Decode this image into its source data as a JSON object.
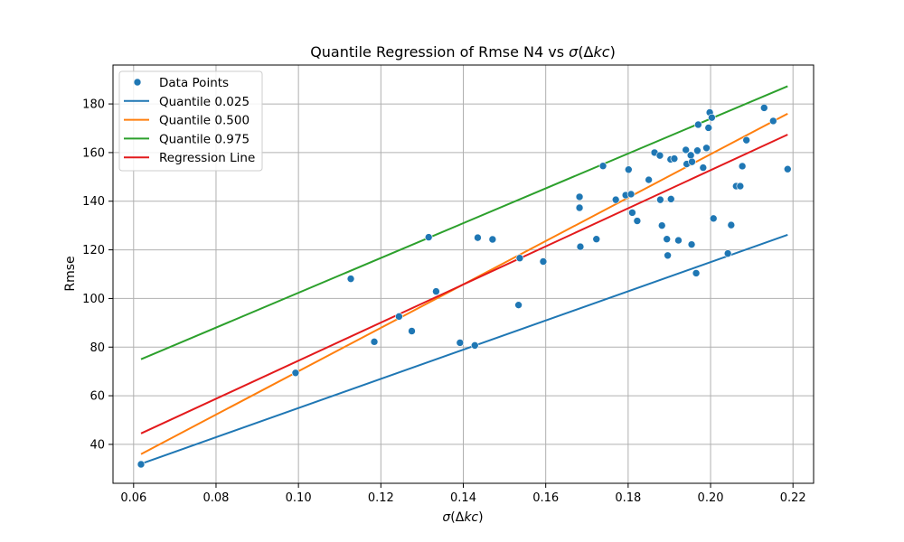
{
  "chart_data": {
    "type": "scatter",
    "title": "Quantile Regression of Rmse N4 vs σ(Δkc)",
    "title_parts": {
      "prefix": "Quantile Regression of Rmse N4 vs ",
      "sigma": "σ",
      "open": "(Δ",
      "kc": "kc",
      "close": ")"
    },
    "xlabel": "σ(Δkc)",
    "xlabel_parts": {
      "sigma": "σ",
      "open": "(Δ",
      "kc": "kc",
      "close": ")"
    },
    "ylabel": "Rmse",
    "xlim": [
      0.055,
      0.225
    ],
    "ylim": [
      24,
      196
    ],
    "xticks": [
      0.06,
      0.08,
      0.1,
      0.12,
      0.14,
      0.16,
      0.18,
      0.2,
      0.22
    ],
    "xtick_labels": [
      "0.06",
      "0.08",
      "0.10",
      "0.12",
      "0.14",
      "0.16",
      "0.18",
      "0.20",
      "0.22"
    ],
    "yticks": [
      40,
      60,
      80,
      100,
      120,
      140,
      160,
      180
    ],
    "ytick_labels": [
      "40",
      "60",
      "80",
      "100",
      "120",
      "140",
      "160",
      "180"
    ],
    "grid": true,
    "legend_position": "top-left",
    "series": [
      {
        "name": "Data Points",
        "kind": "scatter",
        "color": "#1f77b4",
        "points": [
          [
            0.0618,
            31.8
          ],
          [
            0.0993,
            69.4
          ],
          [
            0.1127,
            108.1
          ],
          [
            0.1184,
            82.2
          ],
          [
            0.1244,
            92.6
          ],
          [
            0.1275,
            86.6
          ],
          [
            0.1316,
            125.2
          ],
          [
            0.1334,
            102.9
          ],
          [
            0.1392,
            81.8
          ],
          [
            0.1428,
            80.7
          ],
          [
            0.1435,
            125.0
          ],
          [
            0.1471,
            124.3
          ],
          [
            0.1534,
            97.3
          ],
          [
            0.1537,
            116.6
          ],
          [
            0.1594,
            115.2
          ],
          [
            0.1682,
            141.8
          ],
          [
            0.1682,
            137.3
          ],
          [
            0.1684,
            121.3
          ],
          [
            0.1723,
            124.4
          ],
          [
            0.1739,
            154.5
          ],
          [
            0.177,
            140.6
          ],
          [
            0.1794,
            142.5
          ],
          [
            0.1801,
            153.0
          ],
          [
            0.1807,
            142.9
          ],
          [
            0.181,
            135.3
          ],
          [
            0.1822,
            131.9
          ],
          [
            0.185,
            148.8
          ],
          [
            0.1864,
            160.0
          ],
          [
            0.1877,
            158.8
          ],
          [
            0.1878,
            140.6
          ],
          [
            0.1882,
            130.0
          ],
          [
            0.1894,
            124.4
          ],
          [
            0.1896,
            117.7
          ],
          [
            0.1903,
            157.2
          ],
          [
            0.1904,
            140.9
          ],
          [
            0.1912,
            157.5
          ],
          [
            0.1922,
            123.9
          ],
          [
            0.194,
            161.1
          ],
          [
            0.1942,
            155.3
          ],
          [
            0.1952,
            158.9
          ],
          [
            0.1955,
            156.2
          ],
          [
            0.1954,
            122.2
          ],
          [
            0.1965,
            110.4
          ],
          [
            0.1968,
            160.8
          ],
          [
            0.197,
            171.5
          ],
          [
            0.1982,
            153.8
          ],
          [
            0.199,
            161.9
          ],
          [
            0.1995,
            170.2
          ],
          [
            0.1998,
            176.5
          ],
          [
            0.2003,
            174.4
          ],
          [
            0.2007,
            132.9
          ],
          [
            0.2042,
            118.5
          ],
          [
            0.205,
            130.2
          ],
          [
            0.2062,
            146.2
          ],
          [
            0.2072,
            146.2
          ],
          [
            0.2077,
            154.4
          ],
          [
            0.2087,
            165.1
          ],
          [
            0.213,
            178.4
          ],
          [
            0.2152,
            173.0
          ],
          [
            0.2187,
            153.2
          ]
        ]
      },
      {
        "name": "Quantile 0.025",
        "kind": "line",
        "color": "#1f77b4",
        "x": [
          0.0618,
          0.2187
        ],
        "y": [
          32.0,
          126.2
        ]
      },
      {
        "name": "Quantile 0.500",
        "kind": "line",
        "color": "#ff7f0e",
        "x": [
          0.0618,
          0.2187
        ],
        "y": [
          36.0,
          176.0
        ]
      },
      {
        "name": "Quantile 0.975",
        "kind": "line",
        "color": "#2ca02c",
        "x": [
          0.0618,
          0.2187
        ],
        "y": [
          75.0,
          187.3
        ]
      },
      {
        "name": "Regression Line",
        "kind": "line",
        "color": "#e31a1c",
        "x": [
          0.0618,
          0.2187
        ],
        "y": [
          44.5,
          167.4
        ]
      }
    ]
  }
}
